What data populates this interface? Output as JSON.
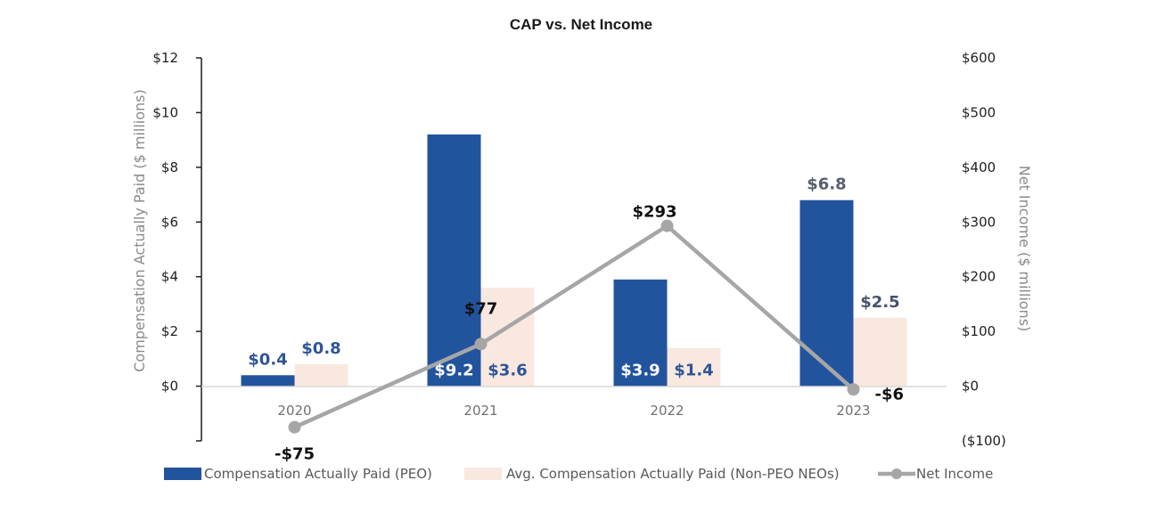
{
  "chart_data": {
    "type": "bar",
    "title": "CAP vs. Net Income",
    "categories": [
      "2020",
      "2021",
      "2022",
      "2023"
    ],
    "ylabel": "Compensation Actually Paid ($ millions)",
    "y2label": "Net Income ($ millions)",
    "ylim": [
      -2,
      12
    ],
    "y2lim": [
      -100,
      600
    ],
    "yticks": [
      {
        "value": 12,
        "label": "$12"
      },
      {
        "value": 10,
        "label": "$10"
      },
      {
        "value": 8,
        "label": "$8"
      },
      {
        "value": 6,
        "label": "$6"
      },
      {
        "value": 4,
        "label": "$4"
      },
      {
        "value": 2,
        "label": "$2"
      },
      {
        "value": 0,
        "label": "$0"
      }
    ],
    "y2ticks": [
      {
        "value": 600,
        "label": "$600"
      },
      {
        "value": 500,
        "label": "$500"
      },
      {
        "value": 400,
        "label": "$400"
      },
      {
        "value": 300,
        "label": "$300"
      },
      {
        "value": 200,
        "label": "$200"
      },
      {
        "value": 100,
        "label": "$100"
      },
      {
        "value": 0,
        "label": "$0"
      },
      {
        "value": -100,
        "label": "($100)"
      }
    ],
    "grid": false,
    "legend_position": "bottom",
    "series": [
      {
        "name": "Compensation Actually Paid (PEO)",
        "type": "bar",
        "axis": "left",
        "color": "#22549e",
        "values": [
          0.4,
          9.2,
          3.9,
          6.8
        ],
        "labels": [
          "$0.4",
          "$9.2",
          "$3.9",
          "$6.8"
        ],
        "label_colors": [
          "#2e5597",
          "#ffffff",
          "#ffffff",
          "#595f6b"
        ]
      },
      {
        "name": "Avg. Compensation Actually Paid (Non-PEO NEOs)",
        "type": "bar",
        "axis": "left",
        "color": "#f9e8df",
        "values": [
          0.8,
          3.6,
          1.4,
          2.5
        ],
        "labels": [
          "$0.8",
          "$3.6",
          "$1.4",
          "$2.5"
        ],
        "label_colors": [
          "#2e5597",
          "#2e5597",
          "#2e5597",
          "#44546a"
        ]
      },
      {
        "name": "Net Income",
        "type": "line",
        "axis": "right",
        "color": "#a6a6a6",
        "values": [
          -75,
          77,
          293,
          -6
        ],
        "labels": [
          "-$75",
          "$77",
          "$293",
          "-$6"
        ],
        "label_colors": [
          "#111111",
          "#111111",
          "#111111",
          "#111111"
        ]
      }
    ]
  }
}
